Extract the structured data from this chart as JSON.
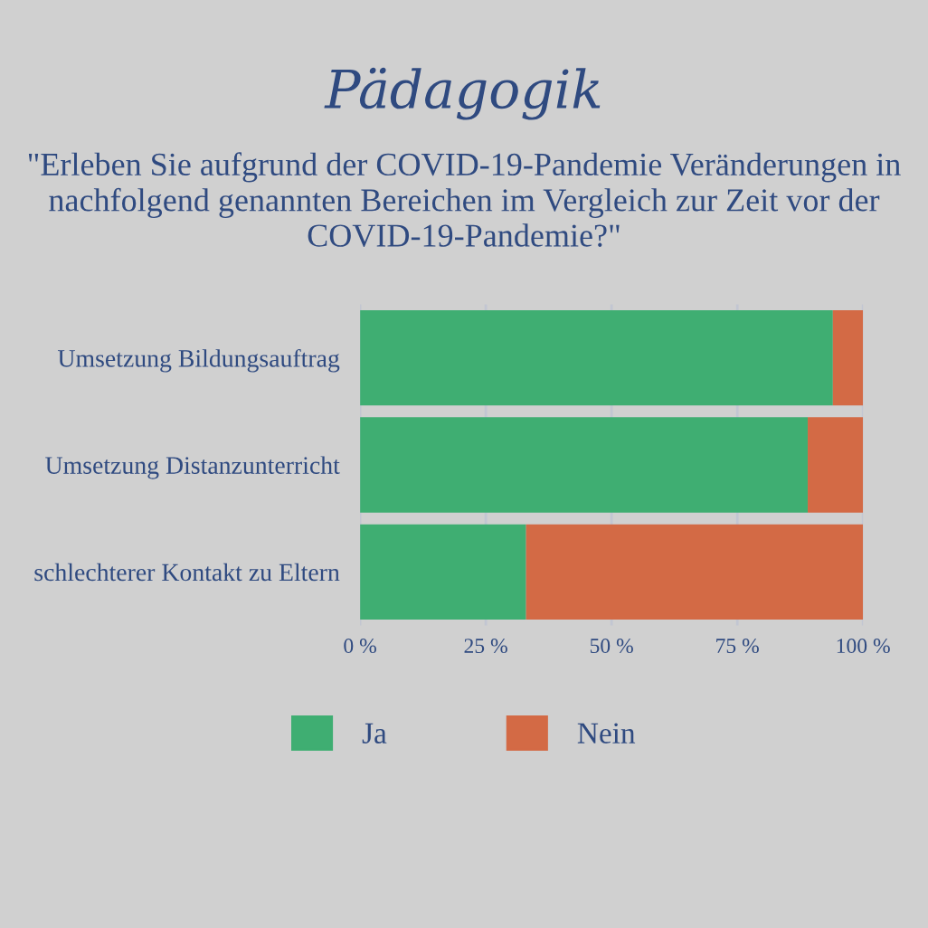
{
  "chart_data": {
    "type": "bar",
    "orientation": "horizontal",
    "stacked": true,
    "title": "Pädagogik",
    "subtitle": "\"Erleben Sie aufgrund der COVID-19-Pandemie Veränderungen in nachfolgend genannten Bereichen im Vergleich zur Zeit vor der COVID-19-Pandemie?\"",
    "categories": [
      "Umsetzung Bildungsauftrag",
      "Umsetzung Distanzunterricht",
      "schlechterer Kontakt zu Eltern"
    ],
    "series": [
      {
        "name": "Ja",
        "color": "#3fae72",
        "values": [
          94,
          89,
          33
        ]
      },
      {
        "name": "Nein",
        "color": "#d36a45",
        "values": [
          6,
          11,
          67
        ]
      }
    ],
    "xlim": [
      0,
      100
    ],
    "xticks": [
      {
        "value": 0,
        "label": "0 %"
      },
      {
        "value": 25,
        "label": "25 %"
      },
      {
        "value": 50,
        "label": "50 %"
      },
      {
        "value": 75,
        "label": "75 %"
      },
      {
        "value": 100,
        "label": "100 %"
      }
    ],
    "grid": "x",
    "legend": "bottom"
  }
}
